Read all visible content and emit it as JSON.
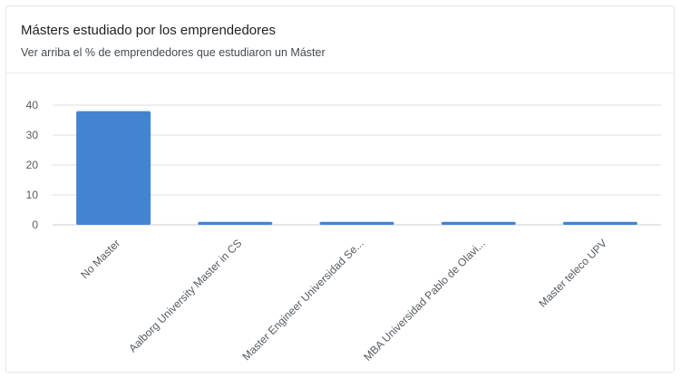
{
  "card": {
    "title": "Másters estudiado por los emprendedores",
    "subtitle": "Ver arriba el % de emprendedores que estudiaron un Máster"
  },
  "chart_data": {
    "type": "bar",
    "categories": [
      "No Master",
      "Aalborg University Master in CS",
      "Master Engineer Universidad Se...",
      "MBA Universidad Pablo de Olavi...",
      "Master teleco UPV"
    ],
    "values": [
      38,
      1,
      1,
      1,
      1
    ],
    "ylim": [
      0,
      40
    ],
    "yticks": [
      0,
      10,
      20,
      30,
      40
    ],
    "grid": true,
    "legend": "none",
    "bar_color": "#4384d0",
    "grid_color": "#dcdfe3",
    "axis_color": "#c9ccd0"
  }
}
